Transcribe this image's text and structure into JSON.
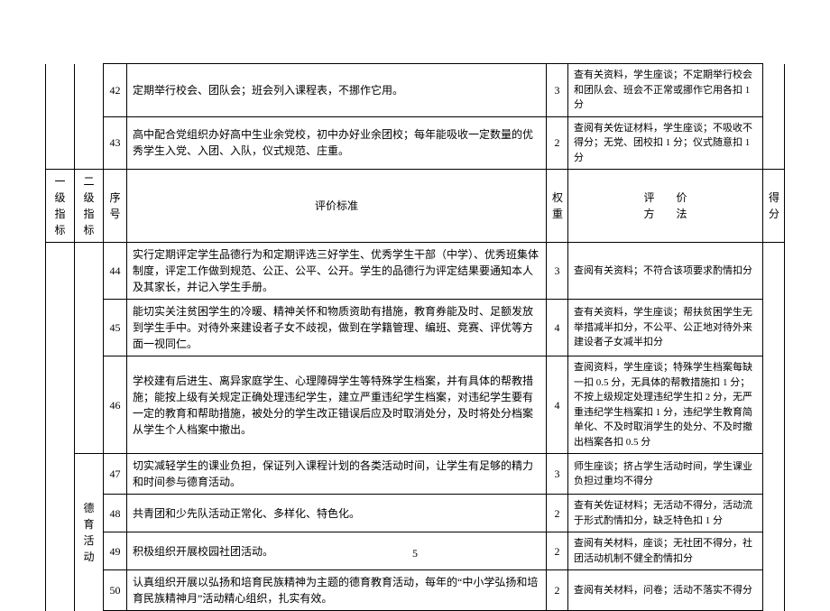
{
  "headers": {
    "level1": "一级指标",
    "level2": "二级指标",
    "seq": "序号",
    "criteria": "评价标准",
    "weight": "权重",
    "eval": "评价",
    "method": "方法",
    "score": "得分"
  },
  "level2_label": "德育活动",
  "rows": [
    {
      "no": "42",
      "criteria": "定期举行校会、团队会；班会列入课程表，不挪作它用。",
      "weight": "3",
      "method": "查有关资料，学生座谈；不定期举行校会和团队会、班会不正常或挪作它用各扣 1 分"
    },
    {
      "no": "43",
      "criteria": "高中配合党组织办好高中生业余党校，初中办好业余团校；每年能吸收一定数量的优秀学生入党、入团、入队，仪式规范、庄重。",
      "weight": "2",
      "method": "查阅有关佐证材料，学生座谈；不吸收不得分；无党、团校扣 1 分；仪式随意扣 1 分"
    },
    {
      "no": "44",
      "criteria": "实行定期评定学生品德行为和定期评选三好学生、优秀学生干部（中学）、优秀班集体制度，评定工作做到规范、公正、公平、公开。学生的品德行为评定结果要通知本人及其家长，并记入学生手册。",
      "weight": "3",
      "method": "查阅有关资料；不符合该项要求酌情扣分"
    },
    {
      "no": "45",
      "criteria": "能切实关注贫困学生的冷暖、精神关怀和物质资助有措施，教育券能及时、足额发放到学生手中。对待外来建设者子女不歧视，做到在学籍管理、编班、竞赛、评优等方面一视同仁。",
      "weight": "4",
      "method": "查有关资料，学生座谈；帮扶贫困学生无举措减半扣分，不公平、公正地对待外来建设者子女减半扣分"
    },
    {
      "no": "46",
      "criteria": "学校建有后进生、离异家庭学生、心理障碍学生等特殊学生档案，并有具体的帮教措施；能按上级有关规定正确处理违纪学生，建立严重违纪学生档案，对违纪学生要有一定的教育和帮助措施，被处分的学生改正错误后应及时取消处分，及时将处分档案从学生个人档案中撤出。",
      "weight": "4",
      "method": "查阅资料，学生座谈；特殊学生档案每缺一扣 0.5 分，无具体的帮教措施扣 1 分；不按上级规定处理违纪学生扣 2 分，无严重违纪学生档案扣 1 分，违纪学生教育简单化、不及时取消学生的处分、不及时撤出档案各扣 0.5 分"
    },
    {
      "no": "47",
      "criteria": "切实减轻学生的课业负担，保证列入课程计划的各类活动时间，让学生有足够的精力和时间参与德育活动。",
      "weight": "3",
      "method": "师生座谈；挤占学生活动时间，学生课业负担过重均不得分"
    },
    {
      "no": "48",
      "criteria": "共青团和少先队活动正常化、多样化、特色化。",
      "weight": "2",
      "method": "查有关佐证材料；无活动不得分，活动流于形式酌情扣分，缺乏特色扣 1 分"
    },
    {
      "no": "49",
      "criteria": "积极组织开展校园社团活动。",
      "weight": "2",
      "method": "查阅有关材料，座谈；无社团不得分，社团活动机制不健全酌情扣分"
    },
    {
      "no": "50",
      "criteria": "认真组织开展以弘扬和培育民族精神为主题的德育教育活动，每年的“中小学弘扬和培育民族精神月”活动精心组织，扎实有效。",
      "weight": "2",
      "method": "查阅有关材料，问卷；活动不落实不得分"
    }
  ],
  "page_number": "5"
}
